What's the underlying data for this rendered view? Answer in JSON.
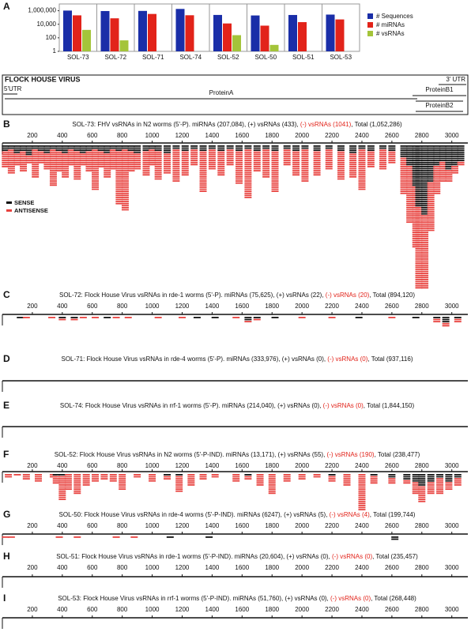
{
  "chart_data": {
    "type": "bar",
    "label": "A",
    "log": true,
    "categories": [
      "SOL-73",
      "SOL-72",
      "SOL-71",
      "SOL-74",
      "SOL-52",
      "SOL-50",
      "SOL-51",
      "SOL-53"
    ],
    "series": [
      {
        "name": "# Sequences",
        "color": "#1a2ea8",
        "values": [
          1052286,
          894120,
          937116,
          1844150,
          238477,
          199744,
          235457,
          268448
        ]
      },
      {
        "name": "# miRNAs",
        "color": "#e2231a",
        "values": [
          207084,
          75625,
          333976,
          214040,
          13171,
          6247,
          20604,
          51760
        ]
      },
      {
        "name": "# vsRNAs",
        "color": "#a4c43a",
        "values": [
          1474,
          42,
          null,
          null,
          245,
          9,
          null,
          null
        ]
      }
    ],
    "ylim": [
      1,
      10000000
    ],
    "yticks": [
      {
        "value": 1000000,
        "label": "1,000,000"
      },
      {
        "value": 10000,
        "label": "10,000"
      },
      100,
      1
    ]
  },
  "genome": {
    "title": "FLOCK HOUSE VIRUS",
    "utr3": "3' UTR",
    "utr5": "5'UTR",
    "protein_a": "ProteinA",
    "protein_b1": "ProteinB1",
    "protein_b2": "ProteinB2"
  },
  "tracks": {
    "xlim": [
      0,
      3107
    ],
    "xticks": [
      200,
      400,
      600,
      800,
      1000,
      1200,
      1400,
      1600,
      1800,
      2000,
      2200,
      2400,
      2600,
      2800,
      3000
    ],
    "sense_color": "#111111",
    "antisense_color": "#e8423f",
    "legend": {
      "sense": "SENSE",
      "antisense": "ANTISENSE"
    },
    "panels": [
      {
        "label": "B",
        "title": [
          "SOL-73: FHV vsRNAs in N2 worms (5'-P). miRNAs (207,084), (+) vsRNAs (433), ",
          "(-) vsRNAs (1041)",
          ", Total (1,052,286)"
        ],
        "ticks": true,
        "stacks": [
          {
            "x": 20,
            "sense": 3,
            "antisense": 8
          },
          {
            "x": 60,
            "sense": 2,
            "antisense": 12
          },
          {
            "x": 100,
            "sense": 4,
            "antisense": 6
          },
          {
            "x": 140,
            "sense": 3,
            "antisense": 10
          },
          {
            "x": 180,
            "sense": 5,
            "antisense": 4
          },
          {
            "x": 220,
            "sense": 2,
            "antisense": 14
          },
          {
            "x": 260,
            "sense": 3,
            "antisense": 6
          },
          {
            "x": 300,
            "sense": 4,
            "antisense": 8
          },
          {
            "x": 340,
            "sense": 2,
            "antisense": 18
          },
          {
            "x": 380,
            "sense": 3,
            "antisense": 10
          },
          {
            "x": 420,
            "sense": 4,
            "antisense": 12
          },
          {
            "x": 460,
            "sense": 2,
            "antisense": 8
          },
          {
            "x": 500,
            "sense": 3,
            "antisense": 14
          },
          {
            "x": 540,
            "sense": 4,
            "antisense": 6
          },
          {
            "x": 580,
            "sense": 3,
            "antisense": 10
          },
          {
            "x": 620,
            "sense": 2,
            "antisense": 20
          },
          {
            "x": 660,
            "sense": 3,
            "antisense": 8
          },
          {
            "x": 700,
            "sense": 4,
            "antisense": 12
          },
          {
            "x": 740,
            "sense": 2,
            "antisense": 10
          },
          {
            "x": 780,
            "sense": 3,
            "antisense": 26
          },
          {
            "x": 820,
            "sense": 2,
            "antisense": 30
          },
          {
            "x": 860,
            "sense": 3,
            "antisense": 10
          },
          {
            "x": 900,
            "sense": 4,
            "antisense": 8
          },
          {
            "x": 960,
            "sense": 3,
            "antisense": 12
          },
          {
            "x": 1000,
            "sense": 2,
            "antisense": 8
          },
          {
            "x": 1040,
            "sense": 3,
            "antisense": 14
          },
          {
            "x": 1100,
            "sense": 4,
            "antisense": 10
          },
          {
            "x": 1160,
            "sense": 2,
            "antisense": 16
          },
          {
            "x": 1220,
            "sense": 3,
            "antisense": 12
          },
          {
            "x": 1280,
            "sense": 2,
            "antisense": 8
          },
          {
            "x": 1340,
            "sense": 3,
            "antisense": 20
          },
          {
            "x": 1400,
            "sense": 2,
            "antisense": 10
          },
          {
            "x": 1460,
            "sense": 3,
            "antisense": 12
          },
          {
            "x": 1520,
            "sense": 2,
            "antisense": 8
          },
          {
            "x": 1580,
            "sense": 3,
            "antisense": 16
          },
          {
            "x": 1640,
            "sense": 2,
            "antisense": 24
          },
          {
            "x": 1700,
            "sense": 3,
            "antisense": 10
          },
          {
            "x": 1760,
            "sense": 2,
            "antisense": 14
          },
          {
            "x": 1820,
            "sense": 3,
            "antisense": 20
          },
          {
            "x": 1900,
            "sense": 2,
            "antisense": 8
          },
          {
            "x": 1960,
            "sense": 3,
            "antisense": 12
          },
          {
            "x": 2020,
            "sense": 2,
            "antisense": 16
          },
          {
            "x": 2100,
            "sense": 3,
            "antisense": 12
          },
          {
            "x": 2180,
            "sense": 2,
            "antisense": 10
          },
          {
            "x": 2260,
            "sense": 3,
            "antisense": 14
          },
          {
            "x": 2340,
            "sense": 4,
            "antisense": 12
          },
          {
            "x": 2400,
            "sense": 2,
            "antisense": 20
          },
          {
            "x": 2460,
            "sense": 3,
            "antisense": 8
          },
          {
            "x": 2540,
            "sense": 2,
            "antisense": 10
          },
          {
            "x": 2600,
            "sense": 3,
            "antisense": 6
          },
          {
            "x": 2680,
            "sense": 6,
            "antisense": 18
          },
          {
            "x": 2720,
            "sense": 10,
            "antisense": 28
          },
          {
            "x": 2760,
            "sense": 20,
            "antisense": 30
          },
          {
            "x": 2780,
            "sense": 30,
            "antisense": 40
          },
          {
            "x": 2820,
            "sense": 34,
            "antisense": 36
          },
          {
            "x": 2860,
            "sense": 18,
            "antisense": 24
          },
          {
            "x": 2900,
            "sense": 10,
            "antisense": 14
          },
          {
            "x": 2940,
            "sense": 8,
            "antisense": 10
          },
          {
            "x": 2980,
            "sense": 12,
            "antisense": 6
          },
          {
            "x": 3020,
            "sense": 10,
            "antisense": 4
          },
          {
            "x": 3060,
            "sense": 8,
            "antisense": 2
          }
        ]
      },
      {
        "label": "C",
        "title": [
          "SOL-72: Flock House Virus vsRNAs in rde-1 worms (5'-P). miRNAs (75,625), (+) vsRNAs (22), ",
          "(-) vsRNAs (20)",
          ", Total (894,120)"
        ],
        "ticks": true,
        "stacks": [
          {
            "x": 120,
            "sense": 1,
            "antisense": 0
          },
          {
            "x": 160,
            "sense": 0,
            "antisense": 1
          },
          {
            "x": 330,
            "sense": 0,
            "antisense": 1
          },
          {
            "x": 400,
            "sense": 1,
            "antisense": 1
          },
          {
            "x": 480,
            "sense": 1,
            "antisense": 1
          },
          {
            "x": 540,
            "sense": 0,
            "antisense": 1
          },
          {
            "x": 620,
            "sense": 0,
            "antisense": 1
          },
          {
            "x": 700,
            "sense": 1,
            "antisense": 0
          },
          {
            "x": 760,
            "sense": 0,
            "antisense": 1
          },
          {
            "x": 840,
            "sense": 0,
            "antisense": 1
          },
          {
            "x": 1040,
            "sense": 0,
            "antisense": 1
          },
          {
            "x": 1200,
            "sense": 0,
            "antisense": 1
          },
          {
            "x": 1300,
            "sense": 1,
            "antisense": 0
          },
          {
            "x": 1420,
            "sense": 1,
            "antisense": 0
          },
          {
            "x": 1560,
            "sense": 0,
            "antisense": 1
          },
          {
            "x": 1640,
            "sense": 2,
            "antisense": 1
          },
          {
            "x": 1700,
            "sense": 1,
            "antisense": 1
          },
          {
            "x": 1820,
            "sense": 1,
            "antisense": 0
          },
          {
            "x": 2000,
            "sense": 0,
            "antisense": 1
          },
          {
            "x": 2200,
            "sense": 0,
            "antisense": 1
          },
          {
            "x": 2380,
            "sense": 1,
            "antisense": 0
          },
          {
            "x": 2600,
            "sense": 0,
            "antisense": 1
          },
          {
            "x": 2760,
            "sense": 1,
            "antisense": 0
          },
          {
            "x": 2900,
            "sense": 1,
            "antisense": 2
          },
          {
            "x": 2960,
            "sense": 3,
            "antisense": 2
          },
          {
            "x": 3040,
            "sense": 1,
            "antisense": 2
          }
        ]
      },
      {
        "label": "D",
        "title": [
          "SOL-71: Flock House Virus vsRNAs in rde-4 worms (5'-P). miRNAs (333,976), (+) vsRNAs (0), ",
          "(-) vsRNAs (0)",
          ", Total (937,116)"
        ],
        "ticks": false,
        "stacks": []
      },
      {
        "label": "E",
        "title": [
          "SOL-74: Flock House Virus vsRNAs in rrf-1 worms (5'-P). miRNAs (214,040), (+) vsRNAs (0), ",
          "(-) vsRNAs (0)",
          ", Total (1,844,150)"
        ],
        "ticks": false,
        "stacks": []
      },
      {
        "label": "F",
        "title": [
          "SOL-52: Flock House Virus vsRNAs in N2 worms (5'-P-IND). miRNAs (13,171), (+) vsRNAs (55), ",
          "(-) vsRNAs (190)",
          ", Total (238,477)"
        ],
        "ticks": true,
        "stacks": [
          {
            "x": 40,
            "sense": 0,
            "antisense": 2
          },
          {
            "x": 100,
            "sense": 0,
            "antisense": 1
          },
          {
            "x": 160,
            "sense": 0,
            "antisense": 3
          },
          {
            "x": 240,
            "sense": 0,
            "antisense": 4
          },
          {
            "x": 340,
            "sense": 0,
            "antisense": 2
          },
          {
            "x": 360,
            "sense": 1,
            "antisense": 4
          },
          {
            "x": 400,
            "sense": 1,
            "antisense": 12
          },
          {
            "x": 440,
            "sense": 0,
            "antisense": 8
          },
          {
            "x": 500,
            "sense": 0,
            "antisense": 10
          },
          {
            "x": 560,
            "sense": 0,
            "antisense": 6
          },
          {
            "x": 620,
            "sense": 0,
            "antisense": 4
          },
          {
            "x": 680,
            "sense": 0,
            "antisense": 3
          },
          {
            "x": 740,
            "sense": 0,
            "antisense": 4
          },
          {
            "x": 800,
            "sense": 0,
            "antisense": 8
          },
          {
            "x": 900,
            "sense": 0,
            "antisense": 2
          },
          {
            "x": 1000,
            "sense": 0,
            "antisense": 4
          },
          {
            "x": 1100,
            "sense": 1,
            "antisense": 2
          },
          {
            "x": 1180,
            "sense": 1,
            "antisense": 8
          },
          {
            "x": 1260,
            "sense": 0,
            "antisense": 6
          },
          {
            "x": 1340,
            "sense": 0,
            "antisense": 3
          },
          {
            "x": 1420,
            "sense": 0,
            "antisense": 2
          },
          {
            "x": 1560,
            "sense": 0,
            "antisense": 4
          },
          {
            "x": 1640,
            "sense": 1,
            "antisense": 2
          },
          {
            "x": 1720,
            "sense": 0,
            "antisense": 6
          },
          {
            "x": 1800,
            "sense": 0,
            "antisense": 10
          },
          {
            "x": 1900,
            "sense": 0,
            "antisense": 4
          },
          {
            "x": 2000,
            "sense": 0,
            "antisense": 3
          },
          {
            "x": 2100,
            "sense": 0,
            "antisense": 2
          },
          {
            "x": 2200,
            "sense": 1,
            "antisense": 3
          },
          {
            "x": 2300,
            "sense": 0,
            "antisense": 6
          },
          {
            "x": 2400,
            "sense": 0,
            "antisense": 18
          },
          {
            "x": 2480,
            "sense": 1,
            "antisense": 4
          },
          {
            "x": 2600,
            "sense": 2,
            "antisense": 3
          },
          {
            "x": 2700,
            "sense": 3,
            "antisense": 2
          },
          {
            "x": 2760,
            "sense": 4,
            "antisense": 6
          },
          {
            "x": 2800,
            "sense": 6,
            "antisense": 8
          },
          {
            "x": 2860,
            "sense": 4,
            "antisense": 6
          },
          {
            "x": 2920,
            "sense": 2,
            "antisense": 8
          },
          {
            "x": 2980,
            "sense": 4,
            "antisense": 4
          },
          {
            "x": 3040,
            "sense": 2,
            "antisense": 4
          }
        ]
      },
      {
        "label": "G",
        "title": [
          "SOL-50: Flock House Virus vsRNAs in rde-4 worms (5'-P-IND). miRNAs (6247), (+) vsRNAs (5), ",
          "(-) vsRNAs (4)",
          ", Total (199,744)"
        ],
        "ticks": true,
        "stacks": [
          {
            "x": 20,
            "sense": 0,
            "antisense": 1
          },
          {
            "x": 60,
            "sense": 0,
            "antisense": 1
          },
          {
            "x": 380,
            "sense": 0,
            "antisense": 1
          },
          {
            "x": 500,
            "sense": 0,
            "antisense": 1
          },
          {
            "x": 760,
            "sense": 0,
            "antisense": 1
          },
          {
            "x": 880,
            "sense": 0,
            "antisense": 1
          },
          {
            "x": 1120,
            "sense": 1,
            "antisense": 0
          },
          {
            "x": 1380,
            "sense": 1,
            "antisense": 0
          },
          {
            "x": 2620,
            "sense": 2,
            "antisense": 0
          }
        ]
      },
      {
        "label": "H",
        "title": [
          "SOL-51: Flock House Virus vsRNAs in rde-1 worms (5'-P-IND). miRNAs (20,604), (+) vsRNAs (0), ",
          "(-) vsRNAs (0)",
          ", Total (235,457)"
        ],
        "ticks": true,
        "stacks": []
      },
      {
        "label": "I",
        "title": [
          "SOL-53: Flock House Virus vsRNAs in rrf-1 worms (5'-P-IND). miRNAs (51,760), (+) vsRNAs (0), ",
          "(-) vsRNAs (0)",
          ", Total (268,448)"
        ],
        "ticks": true,
        "stacks": []
      }
    ]
  }
}
